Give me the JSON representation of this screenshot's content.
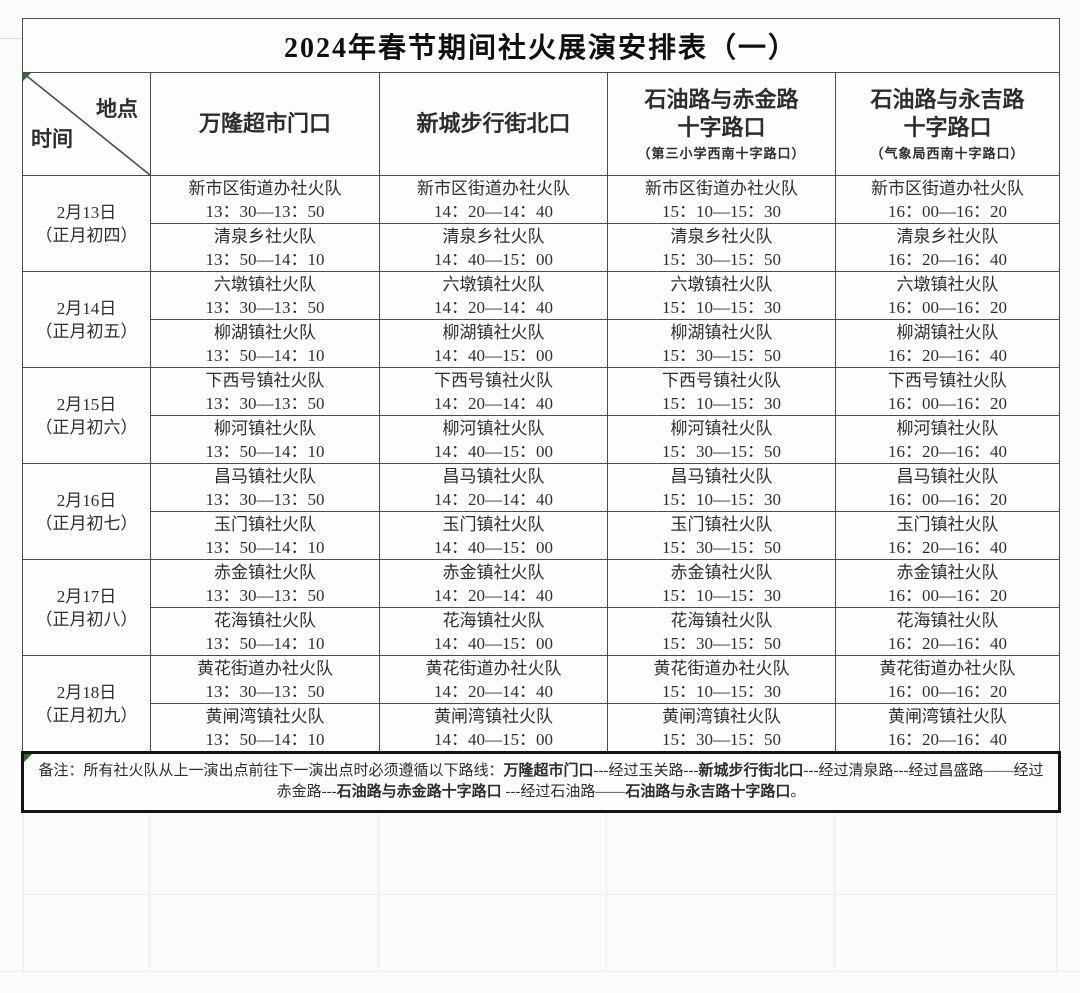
{
  "page": {
    "title": "2024年春节期间社火展演安排表（一）"
  },
  "header": {
    "corner_top": "地点",
    "corner_bottom": "时间",
    "locations": [
      {
        "name": "万隆超市门口",
        "sub": ""
      },
      {
        "name": "新城步行街北口",
        "sub": ""
      },
      {
        "name": "石油路与赤金路\n十字路口",
        "sub": "（第三小学西南十字路口）"
      },
      {
        "name": "石油路与永吉路\n十字路口",
        "sub": "（气象局西南十字路口）"
      }
    ]
  },
  "rows": [
    {
      "date": "2月13日",
      "lunar": "（正月初四）",
      "teams": [
        {
          "name": "新市区街道办社火队",
          "times": [
            "13：30—13：50",
            "14：20—14：40",
            "15：10—15：30",
            "16：00—16：20"
          ]
        },
        {
          "name": "清泉乡社火队",
          "times": [
            "13：50—14：10",
            "14：40—15：00",
            "15：30—15：50",
            "16：20—16：40"
          ]
        }
      ]
    },
    {
      "date": "2月14日",
      "lunar": "（正月初五）",
      "teams": [
        {
          "name": "六墩镇社火队",
          "times": [
            "13：30—13：50",
            "14：20—14：40",
            "15：10—15：30",
            "16：00—16：20"
          ]
        },
        {
          "name": "柳湖镇社火队",
          "times": [
            "13：50—14：10",
            "14：40—15：00",
            "15：30—15：50",
            "16：20—16：40"
          ]
        }
      ]
    },
    {
      "date": "2月15日",
      "lunar": "（正月初六）",
      "teams": [
        {
          "name": "下西号镇社火队",
          "times": [
            "13：30—13：50",
            "14：20—14：40",
            "15：10—15：30",
            "16：00—16：20"
          ]
        },
        {
          "name": "柳河镇社火队",
          "times": [
            "13：50—14：10",
            "14：40—15：00",
            "15：30—15：50",
            "16：20—16：40"
          ]
        }
      ]
    },
    {
      "date": "2月16日",
      "lunar": "（正月初七）",
      "teams": [
        {
          "name": "昌马镇社火队",
          "times": [
            "13：30—13：50",
            "14：20—14：40",
            "15：10—15：30",
            "16：00—16：20"
          ]
        },
        {
          "name": "玉门镇社火队",
          "times": [
            "13：50—14：10",
            "14：40—15：00",
            "15：30—15：50",
            "16：20—16：40"
          ]
        }
      ]
    },
    {
      "date": "2月17日",
      "lunar": "（正月初八）",
      "teams": [
        {
          "name": "赤金镇社火队",
          "times": [
            "13：30—13：50",
            "14：20—14：40",
            "15：10—15：30",
            "16：00—16：20"
          ]
        },
        {
          "name": "花海镇社火队",
          "times": [
            "13：50—14：10",
            "14：40—15：00",
            "15：30—15：50",
            "16：20—16：40"
          ]
        }
      ]
    },
    {
      "date": "2月18日",
      "lunar": "（正月初九）",
      "teams": [
        {
          "name": "黄花街道办社火队",
          "times": [
            "13：30—13：50",
            "14：20—14：40",
            "15：10—15：30",
            "16：00—16：20"
          ]
        },
        {
          "name": "黄闸湾镇社火队",
          "times": [
            "13：50—14：10",
            "14：40—15：00",
            "15：30—15：50",
            "16：20—16：40"
          ]
        }
      ]
    }
  ],
  "note": {
    "segments": [
      {
        "text": "备注：所有社火队从上一演出点前往下一演出点时必须遵循以下路线：",
        "bold": false
      },
      {
        "text": "万隆超市门口",
        "bold": true
      },
      {
        "text": "---经过玉关路---",
        "bold": false
      },
      {
        "text": "新城步行街北口",
        "bold": true
      },
      {
        "text": "---经过清泉路---经过昌盛路——经过赤金路---",
        "bold": false
      },
      {
        "text": "石油路与赤金路十字路口",
        "bold": true
      },
      {
        "text": " ---经过石油路——",
        "bold": false
      },
      {
        "text": "石油路与永吉路十字路口",
        "bold": true
      },
      {
        "text": "。",
        "bold": false
      }
    ]
  },
  "colors": {
    "grid_line": "#4c4c4c",
    "thick_border": "#141414",
    "cell_marker_green": "#2e6b30",
    "faint_grid": "#ecebe8"
  }
}
